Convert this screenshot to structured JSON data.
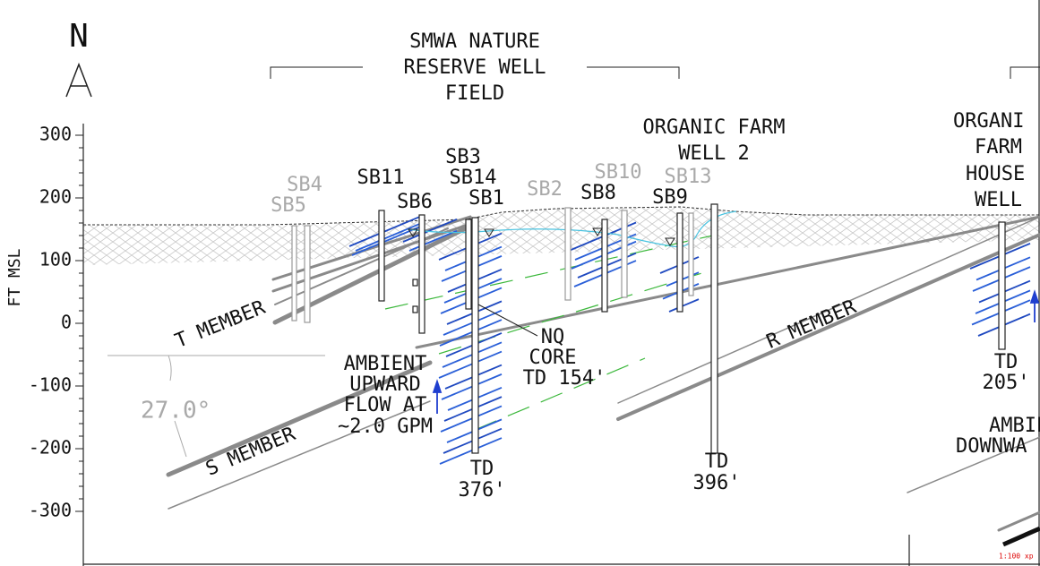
{
  "north": "N",
  "y_axis": {
    "label": "FT MSL",
    "ticks": [
      300,
      200,
      100,
      0,
      -100,
      -200,
      -300
    ]
  },
  "headers": [
    {
      "lines": [
        "SMWA NATURE",
        "RESERVE WELL",
        "FIELD"
      ]
    },
    {
      "lines": [
        "ORGANIC FARM",
        "WELL 2"
      ]
    },
    {
      "lines": [
        "ORGANI",
        "FARM",
        "HOUSE",
        "WELL"
      ]
    }
  ],
  "wells": [
    "SB4",
    "SB5",
    "SB11",
    "SB6",
    "SB3",
    "SB14",
    "SB1",
    "SB2",
    "SB8",
    "SB10",
    "SB13",
    "SB9"
  ],
  "members": [
    "T MEMBER",
    "S MEMBER",
    "R MEMBER"
  ],
  "dip_angle": "27.0°",
  "notes": [
    {
      "lines": [
        "AMBIENT",
        "UPWARD",
        "FLOW AT",
        "~2.0 GPM"
      ]
    },
    {
      "lines": [
        "NQ",
        "CORE",
        "TD 154'"
      ]
    },
    {
      "lines": [
        "TD",
        "376'"
      ]
    },
    {
      "lines": [
        "TD",
        "396'"
      ]
    },
    {
      "lines": [
        "TD",
        "205'"
      ]
    },
    {
      "lines": [
        "AMBIE",
        "DOWNWA"
      ]
    }
  ],
  "scale_note": "1:100 xp"
}
